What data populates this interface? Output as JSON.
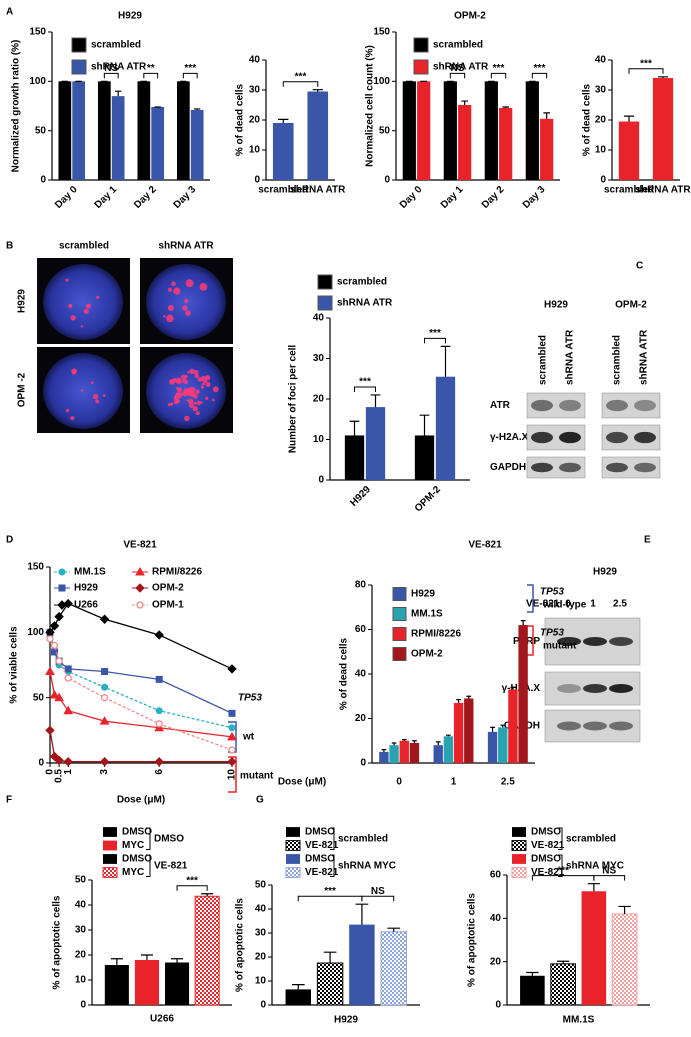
{
  "figure": {
    "panel_letters": [
      "A",
      "B",
      "C",
      "D",
      "E",
      "F",
      "G"
    ],
    "microscopy": {
      "columns": [
        "scrambled",
        "shRNA ATR"
      ],
      "rows": [
        "H929",
        "OPM -2"
      ]
    },
    "blot_c": {
      "groups": [
        "H929",
        "OPM-2"
      ],
      "lanes": [
        "scrambled",
        "shRNA ATR",
        "scrambled",
        "shRNA ATR"
      ],
      "rows": [
        "ATR",
        "γ-H2A.X",
        "GAPDH"
      ]
    },
    "blot_e": {
      "title": "H929",
      "treatment": "VE-821",
      "lanes": [
        "0",
        "1",
        "2.5"
      ],
      "rows": [
        "PARP",
        "γ-H2A.X",
        "GAPDH"
      ]
    }
  },
  "chart_data": [
    {
      "type": "bar",
      "title": "H929",
      "y_label": "Normalized growth ratio (%)",
      "categories": [
        "Day 0",
        "Day 1",
        "Day 2",
        "Day 3"
      ],
      "series": [
        {
          "name": "scrambled",
          "color": "#000000",
          "values": [
            100,
            100,
            100,
            100
          ],
          "errors": [
            0,
            0,
            0,
            0
          ]
        },
        {
          "name": "shRNA ATR",
          "color": "#3a56a8",
          "values": [
            100,
            85,
            74,
            71
          ],
          "errors": [
            0,
            5,
            0,
            1
          ]
        }
      ],
      "ylim": [
        0,
        150
      ],
      "yticks": [
        0,
        50,
        100,
        150
      ],
      "annotations": [
        "NS",
        "**",
        "***"
      ]
    },
    {
      "type": "bar",
      "y_label": "% of dead cells",
      "categories": [
        "scrambled",
        "shRNA ATR"
      ],
      "color": "#3a56a8",
      "values": [
        19,
        29.5
      ],
      "errors": [
        1.2,
        0.6
      ],
      "ylim": [
        0,
        40
      ],
      "yticks": [
        0,
        10,
        20,
        30,
        40
      ],
      "annotations": [
        "***"
      ]
    },
    {
      "type": "bar",
      "title": "OPM-2",
      "y_label": "Normalized cell count (%)",
      "categories": [
        "Day 0",
        "Day 1",
        "Day 2",
        "Day 3"
      ],
      "series": [
        {
          "name": "scrambled",
          "color": "#000000",
          "values": [
            100,
            100,
            100,
            100
          ],
          "errors": [
            0,
            0,
            0,
            0
          ]
        },
        {
          "name": "shRNA ATR",
          "color": "#e8242a",
          "values": [
            100,
            76,
            73,
            62
          ],
          "errors": [
            0,
            4,
            1,
            6
          ]
        }
      ],
      "ylim": [
        0,
        150
      ],
      "yticks": [
        0,
        50,
        100,
        150
      ],
      "annotations": [
        "NS",
        "***",
        "***"
      ]
    },
    {
      "type": "bar",
      "y_label": "% of dead cells",
      "categories": [
        "scrambled",
        "shRNA ATR"
      ],
      "color": "#e8242a",
      "values": [
        19.5,
        34
      ],
      "errors": [
        1.8,
        0.4
      ],
      "ylim": [
        0,
        40
      ],
      "yticks": [
        0,
        10,
        20,
        30,
        40
      ],
      "annotations": [
        "***"
      ]
    },
    {
      "type": "bar",
      "y_label": "Number of foci per cell",
      "categories": [
        "H929",
        "OPM-2"
      ],
      "series": [
        {
          "name": "scrambled",
          "color": "#000000",
          "values": [
            11,
            11
          ],
          "errors": [
            3.5,
            5
          ]
        },
        {
          "name": "shRNA ATR",
          "color": "#3a56a8",
          "values": [
            18,
            25.5
          ],
          "errors": [
            3,
            7.5
          ]
        }
      ],
      "ylim": [
        0,
        40
      ],
      "yticks": [
        0,
        10,
        20,
        30,
        40
      ],
      "annotations": [
        "***",
        "***"
      ]
    },
    {
      "type": "line",
      "title": "VE-821",
      "y_label": "% of viable cells",
      "x_label": "Dose (μM)",
      "x": [
        0,
        0.25,
        0.5,
        1,
        3,
        6,
        10
      ],
      "series": [
        {
          "name": "MM.1S",
          "color": "#2ab0c4",
          "marker": "circle",
          "dashed": true,
          "values": [
            98,
            85,
            75,
            70,
            58,
            40,
            27
          ]
        },
        {
          "name": "H929",
          "color": "#3a56a8",
          "marker": "square",
          "dashed": false,
          "values": [
            100,
            85,
            78,
            72,
            70,
            64,
            38
          ]
        },
        {
          "name": "U266",
          "color": "#000000",
          "marker": "diamond",
          "dashed": false,
          "values": [
            100,
            105,
            112,
            122,
            110,
            98,
            72
          ]
        },
        {
          "name": "RPMI/8226",
          "color": "#e8242a",
          "marker": "triangle",
          "dashed": false,
          "values": [
            70,
            52,
            50,
            40,
            32,
            27,
            20
          ]
        },
        {
          "name": "OPM-2",
          "color": "#a3161b",
          "marker": "diamond",
          "dashed": false,
          "values": [
            25,
            5,
            2,
            1,
            1,
            1,
            1
          ]
        },
        {
          "name": "OPM-1",
          "color": "#f08a8a",
          "marker": "open-circle",
          "dashed": true,
          "values": [
            95,
            90,
            78,
            65,
            50,
            30,
            10
          ]
        }
      ],
      "xlim": [
        0,
        10
      ],
      "xticks": [
        0,
        0.5,
        1,
        3,
        6,
        10
      ],
      "ylim": [
        0,
        150
      ],
      "yticks": [
        0,
        50,
        100,
        150
      ],
      "annotations": [
        "TP53",
        "wt",
        "mutant"
      ]
    },
    {
      "type": "bar",
      "title": "VE-821",
      "y_label": "% of dead cells",
      "x_label": "Dose (μM)",
      "categories": [
        "0",
        "1",
        "2.5"
      ],
      "series": [
        {
          "name": "H929",
          "color": "#3a56a8",
          "values": [
            5,
            8,
            14
          ],
          "errors": [
            1,
            1.5,
            2
          ]
        },
        {
          "name": "MM.1S",
          "color": "#2aa3b0",
          "values": [
            8,
            12,
            16
          ],
          "errors": [
            1,
            0.5,
            1
          ]
        },
        {
          "name": "RPMI/8226",
          "color": "#e8242a",
          "values": [
            10,
            27,
            33
          ],
          "errors": [
            0.5,
            1.5,
            1
          ]
        },
        {
          "name": "OPM-2",
          "color": "#a3161b",
          "values": [
            9,
            29,
            62
          ],
          "errors": [
            1,
            1,
            2
          ]
        }
      ],
      "ylim": [
        0,
        80
      ],
      "yticks": [
        0,
        20,
        40,
        60,
        80
      ],
      "annotations": [
        "TP53",
        "wild-type",
        "TP53",
        "mutant"
      ]
    },
    {
      "type": "bar",
      "y_label": "% of apoptotic cells",
      "categories": [
        "U266"
      ],
      "series": [
        {
          "name": "DMSO",
          "color": "#000000",
          "hatch": false,
          "values": [
            16
          ],
          "errors": [
            2.5
          ]
        },
        {
          "name": "MYC",
          "color": "#e8242a",
          "hatch": false,
          "values": [
            18
          ],
          "errors": [
            2
          ]
        },
        {
          "name": "DMSO",
          "color": "#000000",
          "hatch": false,
          "values": [
            17
          ],
          "errors": [
            1.5
          ]
        },
        {
          "name": "MYC",
          "color": "#e8242a",
          "hatch": true,
          "values": [
            43.5
          ],
          "errors": [
            1
          ]
        }
      ],
      "legend_groups": [
        "DMSO",
        "VE-821"
      ],
      "ylim": [
        0,
        50
      ],
      "yticks": [
        0,
        10,
        20,
        30,
        40,
        50
      ],
      "annotations": [
        "***"
      ]
    },
    {
      "type": "bar",
      "y_label": "% of apoptotic cells",
      "categories": [
        "H929"
      ],
      "series": [
        {
          "name": "DMSO",
          "color": "#000000",
          "hatch": false,
          "values": [
            6.5
          ],
          "errors": [
            2
          ]
        },
        {
          "name": "VE-821",
          "color": "#000000",
          "hatch": true,
          "values": [
            17.5
          ],
          "errors": [
            4.5
          ]
        },
        {
          "name": "DMSO",
          "color": "#3a56a8",
          "hatch": false,
          "values": [
            33.5
          ],
          "errors": [
            8.5
          ]
        },
        {
          "name": "VE-821",
          "color": "#8fa3dc",
          "hatch": true,
          "values": [
            30.5
          ],
          "errors": [
            1.5
          ]
        }
      ],
      "legend_groups": [
        "scrambled",
        "shRNA MYC"
      ],
      "ylim": [
        0,
        50
      ],
      "yticks": [
        0,
        10,
        20,
        30,
        40,
        50
      ],
      "annotations": [
        "***",
        "NS"
      ]
    },
    {
      "type": "bar",
      "y_label": "% of apoptotic cells",
      "categories": [
        "MM.1S"
      ],
      "series": [
        {
          "name": "DMSO",
          "color": "#000000",
          "hatch": false,
          "values": [
            13.5
          ],
          "errors": [
            1.5
          ]
        },
        {
          "name": "VE-821",
          "color": "#000000",
          "hatch": true,
          "values": [
            19
          ],
          "errors": [
            1.2
          ]
        },
        {
          "name": "DMSO",
          "color": "#e8242a",
          "hatch": false,
          "values": [
            52.5
          ],
          "errors": [
            3.5
          ]
        },
        {
          "name": "VE-821",
          "color": "#f2a0a0",
          "hatch": true,
          "values": [
            42
          ],
          "errors": [
            3.5
          ]
        }
      ],
      "legend_groups": [
        "scrambled",
        "shRNA MYC"
      ],
      "ylim": [
        0,
        60
      ],
      "yticks": [
        0,
        20,
        40,
        60
      ],
      "annotations": [
        "***",
        "NS"
      ]
    }
  ]
}
